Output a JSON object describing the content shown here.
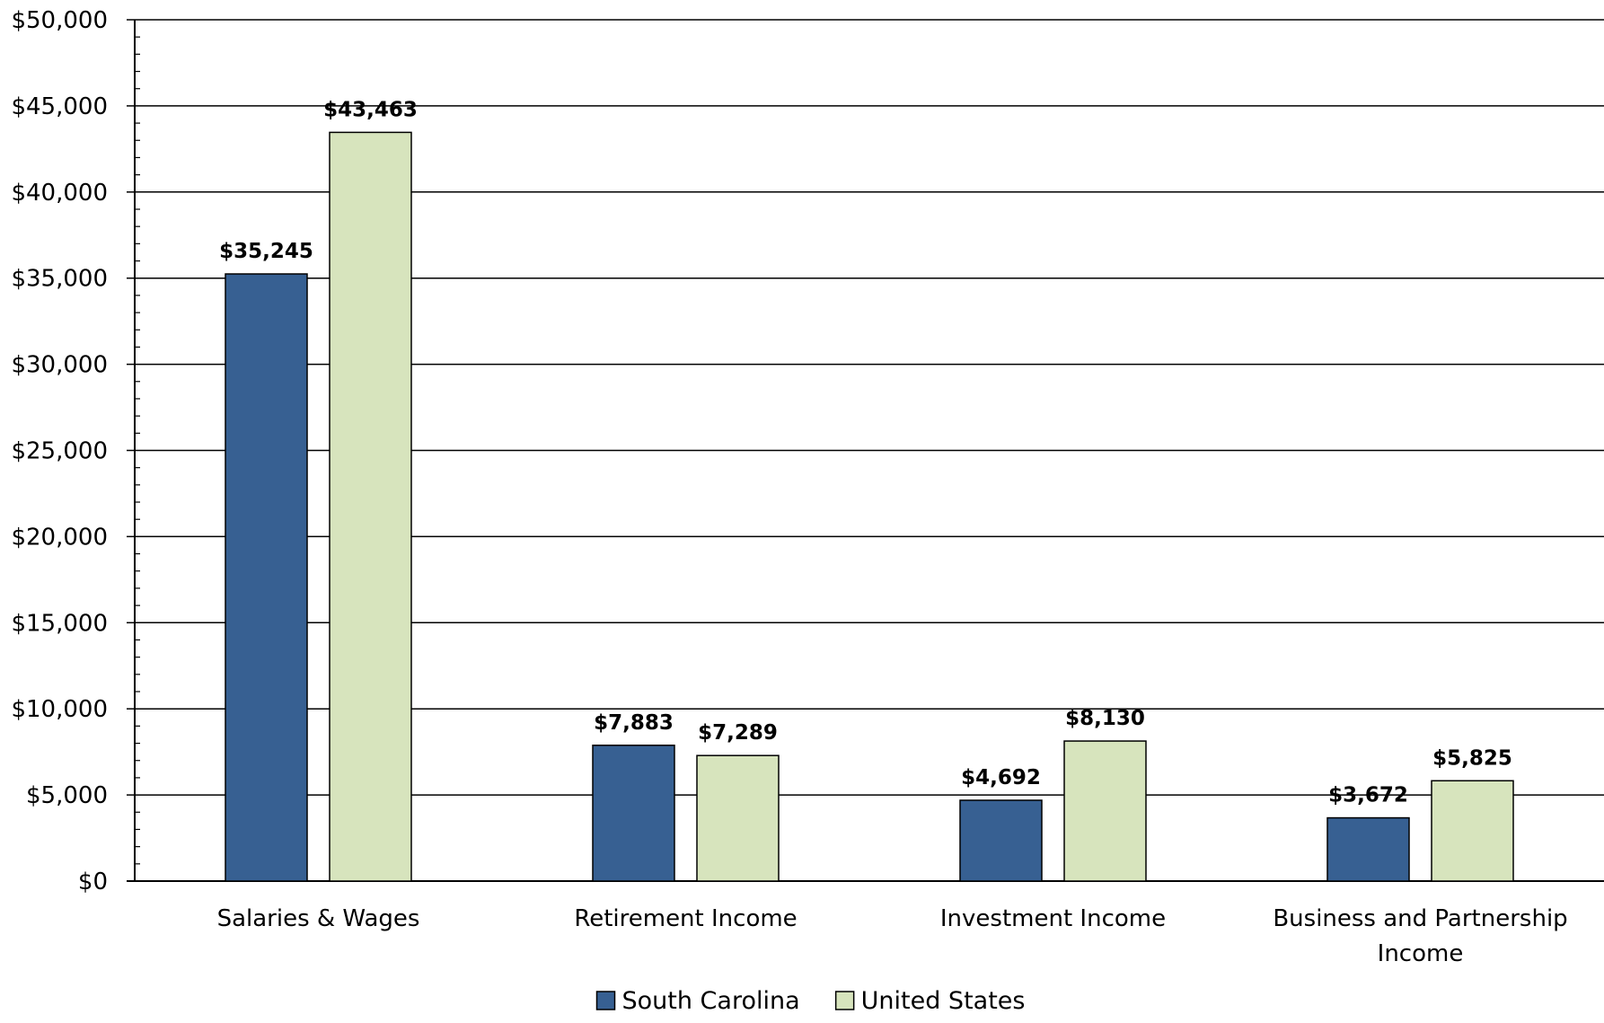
{
  "chart_data": {
    "type": "bar",
    "title": "",
    "xlabel": "",
    "ylabel": "",
    "categories": [
      [
        "Salaries & Wages"
      ],
      [
        "Retirement Income"
      ],
      [
        "Investment Income"
      ],
      [
        "Business and Partnership",
        "Income"
      ]
    ],
    "series": [
      {
        "name": "South Carolina",
        "color": "#376092",
        "values": [
          35245,
          7883,
          4692,
          3672
        ],
        "labels": [
          "$35,245",
          "$7,883",
          "$4,692",
          "$3,672"
        ]
      },
      {
        "name": "United States",
        "color": "#D7E4BD",
        "values": [
          43463,
          7289,
          8130,
          5825
        ],
        "labels": [
          "$43,463",
          "$7,289",
          "$8,130",
          "$5,825"
        ]
      }
    ],
    "ylim": [
      0,
      50000
    ],
    "ytick_values": [
      0,
      5000,
      10000,
      15000,
      20000,
      25000,
      30000,
      35000,
      40000,
      45000,
      50000
    ],
    "ytick_labels": [
      "$0",
      "$5,000",
      "$10,000",
      "$15,000",
      "$20,000",
      "$25,000",
      "$30,000",
      "$35,000",
      "$40,000",
      "$45,000",
      "$50,000"
    ],
    "minor_ticks_per_major": 5,
    "grid": true,
    "legend": "bottom-center"
  }
}
